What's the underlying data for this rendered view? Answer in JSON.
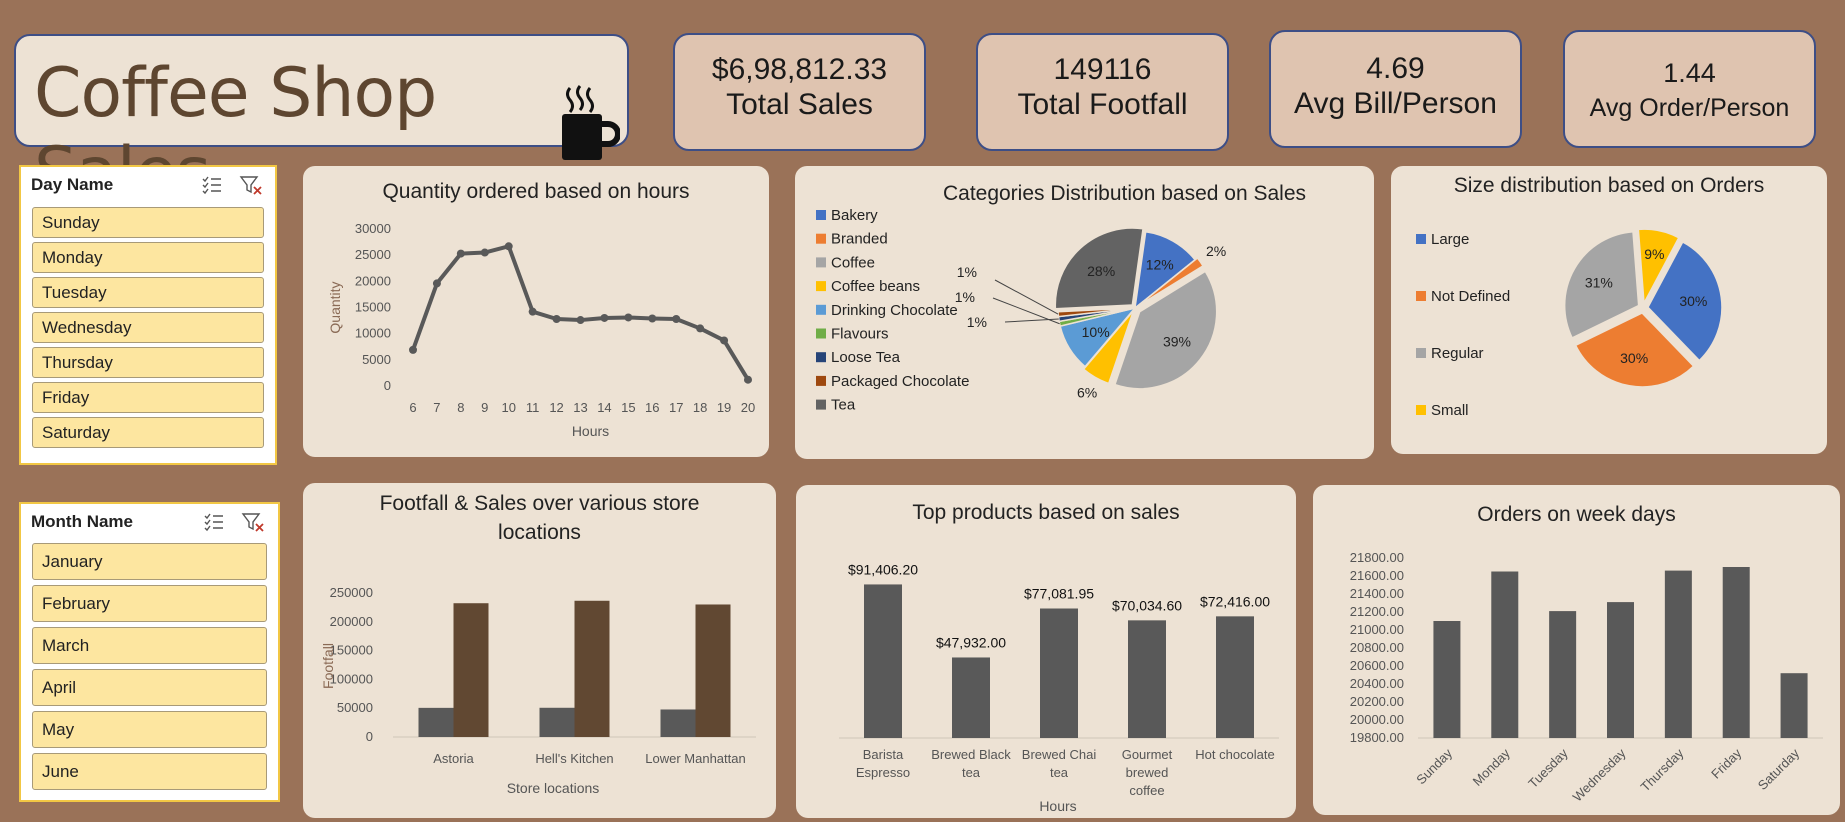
{
  "header": {
    "title": "Coffee Shop Sales"
  },
  "kpis": [
    {
      "value": "$6,98,812.33",
      "label": "Total Sales"
    },
    {
      "value": "149116",
      "label": "Total Footfall"
    },
    {
      "value": "4.69",
      "label": "Avg Bill/Person"
    },
    {
      "value": "1.44",
      "label": "Avg Order/Person"
    }
  ],
  "slicers": {
    "day": {
      "title": "Day Name",
      "items": [
        "Sunday",
        "Monday",
        "Tuesday",
        "Wednesday",
        "Thursday",
        "Friday",
        "Saturday"
      ]
    },
    "month": {
      "title": "Month Name",
      "items": [
        "January",
        "February",
        "March",
        "April",
        "May",
        "June"
      ]
    }
  },
  "colors": {
    "bg": "#9a7258",
    "card": "#ede2d4",
    "dark": "#595959",
    "brown": "#614832",
    "kpi": "#dfc4b0"
  },
  "chart_data": [
    {
      "id": "hours",
      "type": "line",
      "title": "Quantity ordered based on hours",
      "xlabel": "Hours",
      "ylabel": "Quantity",
      "x": [
        6,
        7,
        8,
        9,
        10,
        11,
        12,
        13,
        14,
        15,
        16,
        17,
        18,
        19,
        20
      ],
      "values": [
        6900,
        19600,
        25300,
        25500,
        26700,
        14200,
        12800,
        12600,
        13000,
        13100,
        12900,
        12800,
        11000,
        8700,
        1200
      ],
      "ylim": [
        0,
        30000
      ],
      "yticks": [
        "0",
        "5000",
        "10000",
        "15000",
        "20000",
        "25000",
        "30000"
      ]
    },
    {
      "id": "categories",
      "type": "pie",
      "title": "Categories Distribution based on Sales",
      "labels": [
        "Bakery",
        "Branded",
        "Coffee",
        "Coffee beans",
        "Drinking Chocolate",
        "Flavours",
        "Loose Tea",
        "Packaged Chocolate",
        "Tea"
      ],
      "values": [
        12,
        2,
        39,
        6,
        10,
        1,
        1,
        1,
        28
      ],
      "data_labels": [
        "12%",
        "2%",
        "39%",
        "6%",
        "10%",
        "1%",
        "1%",
        "1%",
        "28%"
      ],
      "colors": [
        "#4472c4",
        "#ed7d31",
        "#a5a5a5",
        "#ffc000",
        "#5b9bd5",
        "#70ad47",
        "#264478",
        "#9e480e",
        "#636363"
      ],
      "legend": "left"
    },
    {
      "id": "sizes",
      "type": "pie",
      "title": "Size distribution based on Orders",
      "labels": [
        "Large",
        "Not Defined",
        "Regular",
        "Small"
      ],
      "values": [
        30,
        30,
        31,
        9
      ],
      "data_labels": [
        "30%",
        "30%",
        "31%",
        "9%"
      ],
      "colors": [
        "#4472c4",
        "#ed7d31",
        "#a5a5a5",
        "#ffc000"
      ],
      "legend": "left"
    },
    {
      "id": "stores",
      "type": "bar",
      "title": "Footfall & Sales over various store locations",
      "xlabel": "Store locations",
      "ylabel": "Footfall",
      "categories": [
        "Astoria",
        "Hell's Kitchen",
        "Lower Manhattan"
      ],
      "series": [
        {
          "values": [
            50599,
            50735,
            47782
          ],
          "color": "#595959"
        },
        {
          "values": [
            232244,
            236511,
            230057
          ],
          "color": "#614832"
        }
      ],
      "ylim": [
        0,
        250000
      ],
      "yticks": [
        "0",
        "50000",
        "100000",
        "150000",
        "200000",
        "250000"
      ]
    },
    {
      "id": "products",
      "type": "bar",
      "title": "Top products based on sales",
      "xlabel": "Hours",
      "categories": [
        [
          "Barista",
          "Espresso"
        ],
        [
          "Brewed Black",
          "tea"
        ],
        [
          "Brewed Chai",
          "tea"
        ],
        [
          "Gourmet",
          "brewed",
          "coffee"
        ],
        [
          "Hot chocolate"
        ]
      ],
      "values": [
        91406.2,
        47932.0,
        77081.95,
        70034.6,
        72416.0
      ],
      "data_labels": [
        "$91,406.20",
        "$47,932.00",
        "$77,081.95",
        "$70,034.60",
        "$72,416.00"
      ],
      "ylim": [
        0,
        100000
      ]
    },
    {
      "id": "weekdays",
      "type": "bar",
      "title": "Orders on week days",
      "categories": [
        "Sunday",
        "Monday",
        "Tuesday",
        "Wednesday",
        "Thursday",
        "Friday",
        "Saturday"
      ],
      "values": [
        21100,
        21650,
        21210,
        21310,
        21660,
        21700,
        20520
      ],
      "ylim": [
        19800,
        21800
      ],
      "yticks": [
        "19800.00",
        "20000.00",
        "20200.00",
        "20400.00",
        "20600.00",
        "20800.00",
        "21000.00",
        "21200.00",
        "21400.00",
        "21600.00",
        "21800.00"
      ]
    }
  ]
}
